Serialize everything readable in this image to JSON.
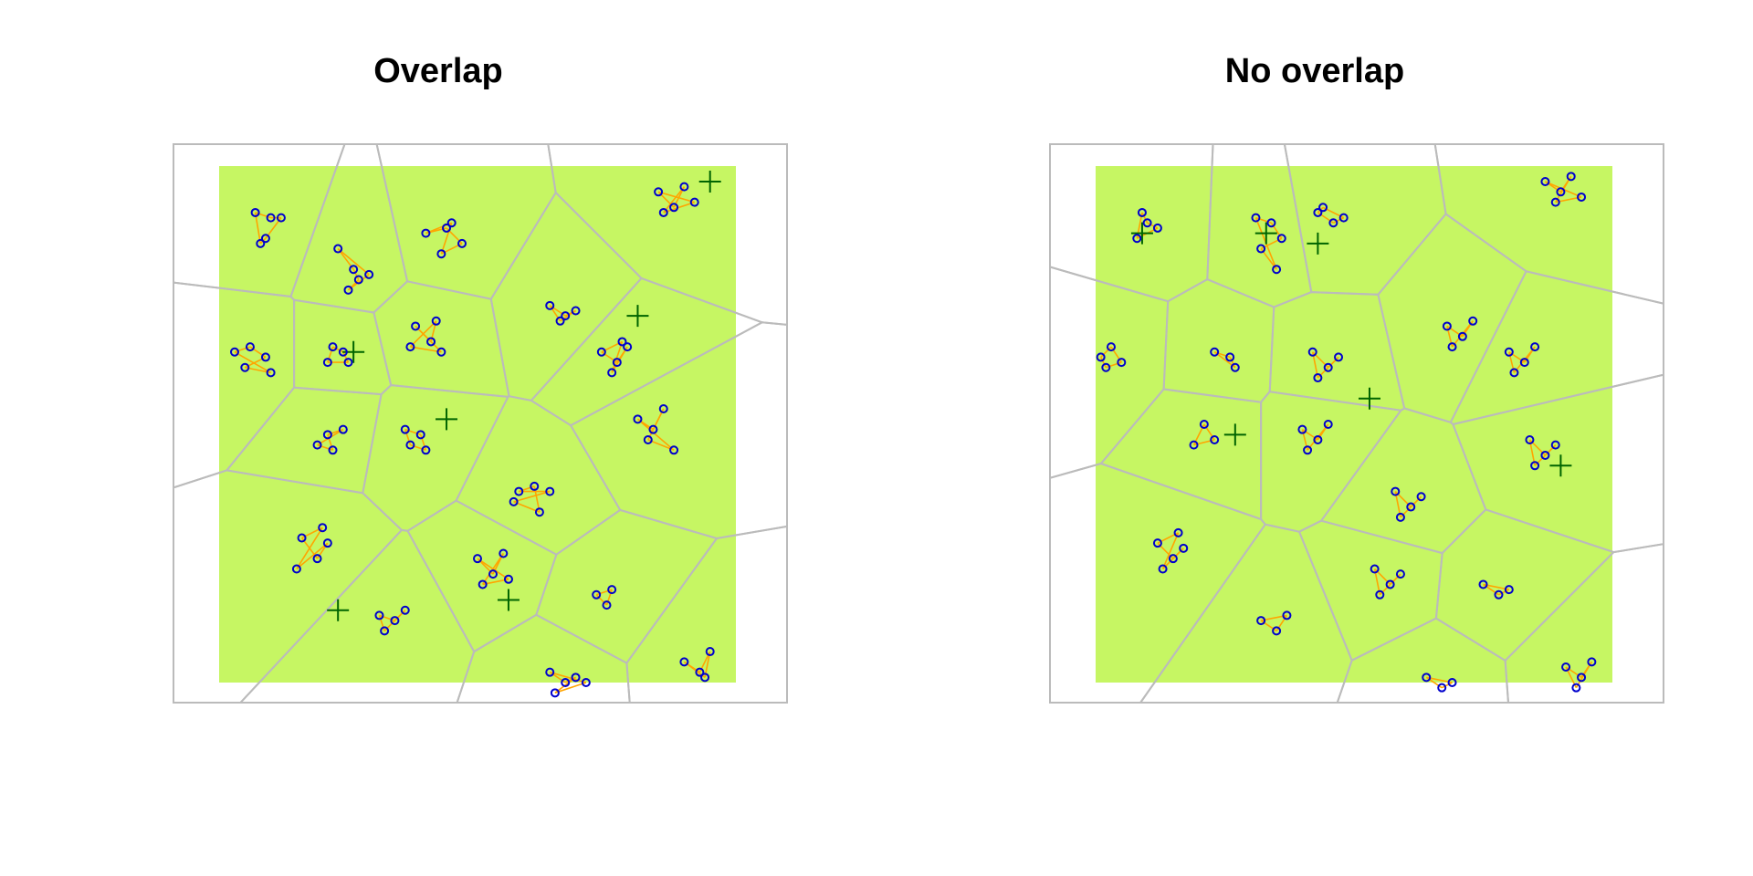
{
  "chart_data": [
    {
      "type": "scatter",
      "title": "Overlap",
      "window": "unit-square",
      "background_color": "#c6f663",
      "tessellation_color": "#bbbbbb",
      "point_color": "#0000cc",
      "line_color": "#ffa500",
      "center_color": "#006400",
      "axes": "none",
      "grid": false,
      "legend": "none",
      "centers": [
        [
          0.26,
          0.64
        ],
        [
          0.44,
          0.51
        ],
        [
          0.56,
          0.16
        ],
        [
          0.81,
          0.71
        ],
        [
          0.23,
          0.14
        ],
        [
          0.95,
          0.97
        ]
      ],
      "clusters": [
        {
          "c": [
            0.09,
            0.88
          ],
          "pts": [
            [
              0.07,
              0.91
            ],
            [
              0.1,
              0.9
            ],
            [
              0.12,
              0.9
            ],
            [
              0.09,
              0.86
            ],
            [
              0.08,
              0.85
            ]
          ]
        },
        {
          "c": [
            0.26,
            0.82
          ],
          "pts": [
            [
              0.23,
              0.84
            ],
            [
              0.26,
              0.8
            ],
            [
              0.27,
              0.78
            ],
            [
              0.25,
              0.76
            ],
            [
              0.29,
              0.79
            ]
          ]
        },
        {
          "c": [
            0.44,
            0.86
          ],
          "pts": [
            [
              0.4,
              0.87
            ],
            [
              0.44,
              0.88
            ],
            [
              0.47,
              0.85
            ],
            [
              0.43,
              0.83
            ],
            [
              0.45,
              0.89
            ]
          ]
        },
        {
          "c": [
            0.88,
            0.93
          ],
          "pts": [
            [
              0.85,
              0.95
            ],
            [
              0.88,
              0.92
            ],
            [
              0.9,
              0.96
            ],
            [
              0.86,
              0.91
            ],
            [
              0.92,
              0.93
            ]
          ]
        },
        {
          "c": [
            0.06,
            0.63
          ],
          "pts": [
            [
              0.03,
              0.64
            ],
            [
              0.06,
              0.65
            ],
            [
              0.09,
              0.63
            ],
            [
              0.05,
              0.61
            ],
            [
              0.1,
              0.6
            ]
          ]
        },
        {
          "c": [
            0.23,
            0.63
          ],
          "pts": [
            [
              0.22,
              0.65
            ],
            [
              0.24,
              0.64
            ],
            [
              0.25,
              0.62
            ],
            [
              0.21,
              0.62
            ]
          ]
        },
        {
          "c": [
            0.4,
            0.67
          ],
          "pts": [
            [
              0.38,
              0.69
            ],
            [
              0.41,
              0.66
            ],
            [
              0.42,
              0.7
            ],
            [
              0.37,
              0.65
            ],
            [
              0.43,
              0.64
            ]
          ]
        },
        {
          "c": [
            0.67,
            0.72
          ],
          "pts": [
            [
              0.64,
              0.73
            ],
            [
              0.67,
              0.71
            ],
            [
              0.69,
              0.72
            ],
            [
              0.66,
              0.7
            ]
          ]
        },
        {
          "c": [
            0.77,
            0.63
          ],
          "pts": [
            [
              0.74,
              0.64
            ],
            [
              0.77,
              0.62
            ],
            [
              0.79,
              0.65
            ],
            [
              0.76,
              0.6
            ],
            [
              0.78,
              0.66
            ]
          ]
        },
        {
          "c": [
            0.22,
            0.5
          ],
          "pts": [
            [
              0.21,
              0.48
            ],
            [
              0.24,
              0.49
            ],
            [
              0.19,
              0.46
            ],
            [
              0.22,
              0.45
            ]
          ]
        },
        {
          "c": [
            0.38,
            0.47
          ],
          "pts": [
            [
              0.36,
              0.49
            ],
            [
              0.39,
              0.48
            ],
            [
              0.4,
              0.45
            ],
            [
              0.37,
              0.46
            ]
          ]
        },
        {
          "c": [
            0.6,
            0.36
          ],
          "pts": [
            [
              0.58,
              0.37
            ],
            [
              0.61,
              0.38
            ],
            [
              0.62,
              0.33
            ],
            [
              0.57,
              0.35
            ],
            [
              0.64,
              0.37
            ]
          ]
        },
        {
          "c": [
            0.84,
            0.5
          ],
          "pts": [
            [
              0.81,
              0.51
            ],
            [
              0.84,
              0.49
            ],
            [
              0.86,
              0.53
            ],
            [
              0.83,
              0.47
            ],
            [
              0.88,
              0.45
            ]
          ]
        },
        {
          "c": [
            0.18,
            0.26
          ],
          "pts": [
            [
              0.16,
              0.28
            ],
            [
              0.19,
              0.24
            ],
            [
              0.21,
              0.27
            ],
            [
              0.15,
              0.22
            ],
            [
              0.2,
              0.3
            ]
          ]
        },
        {
          "c": [
            0.33,
            0.12
          ],
          "pts": [
            [
              0.31,
              0.13
            ],
            [
              0.34,
              0.12
            ],
            [
              0.36,
              0.14
            ],
            [
              0.32,
              0.1
            ]
          ]
        },
        {
          "c": [
            0.53,
            0.23
          ],
          "pts": [
            [
              0.5,
              0.24
            ],
            [
              0.53,
              0.21
            ],
            [
              0.55,
              0.25
            ],
            [
              0.51,
              0.19
            ],
            [
              0.56,
              0.2
            ]
          ]
        },
        {
          "c": [
            0.74,
            0.16
          ],
          "pts": [
            [
              0.73,
              0.17
            ],
            [
              0.75,
              0.15
            ],
            [
              0.76,
              0.18
            ]
          ]
        },
        {
          "c": [
            0.66,
            0.01
          ],
          "pts": [
            [
              0.64,
              0.02
            ],
            [
              0.67,
              0.0
            ],
            [
              0.69,
              0.01
            ],
            [
              0.65,
              -0.02
            ],
            [
              0.71,
              0.0
            ]
          ]
        },
        {
          "c": [
            0.92,
            0.03
          ],
          "pts": [
            [
              0.9,
              0.04
            ],
            [
              0.93,
              0.02
            ],
            [
              0.95,
              0.06
            ],
            [
              0.94,
              0.01
            ]
          ]
        }
      ]
    },
    {
      "type": "scatter",
      "title": "No overlap",
      "window": "unit-square",
      "background_color": "#c6f663",
      "tessellation_color": "#bbbbbb",
      "point_color": "#0000cc",
      "line_color": "#ffa500",
      "center_color": "#006400",
      "axes": "none",
      "grid": false,
      "legend": "none",
      "centers": [
        [
          0.09,
          0.87
        ],
        [
          0.33,
          0.87
        ],
        [
          0.43,
          0.85
        ],
        [
          0.53,
          0.55
        ],
        [
          0.27,
          0.48
        ],
        [
          0.9,
          0.42
        ]
      ],
      "clusters": [
        {
          "c": [
            0.1,
            0.88
          ],
          "pts": [
            [
              0.09,
              0.91
            ],
            [
              0.1,
              0.89
            ],
            [
              0.12,
              0.88
            ],
            [
              0.08,
              0.86
            ]
          ]
        },
        {
          "c": [
            0.34,
            0.87
          ],
          "pts": [
            [
              0.31,
              0.9
            ],
            [
              0.34,
              0.89
            ],
            [
              0.36,
              0.86
            ],
            [
              0.32,
              0.84
            ],
            [
              0.35,
              0.8
            ]
          ]
        },
        {
          "c": [
            0.45,
            0.89
          ],
          "pts": [
            [
              0.43,
              0.91
            ],
            [
              0.46,
              0.89
            ],
            [
              0.48,
              0.9
            ],
            [
              0.44,
              0.92
            ]
          ]
        },
        {
          "c": [
            0.9,
            0.96
          ],
          "pts": [
            [
              0.87,
              0.97
            ],
            [
              0.9,
              0.95
            ],
            [
              0.92,
              0.98
            ],
            [
              0.89,
              0.93
            ],
            [
              0.94,
              0.94
            ]
          ]
        },
        {
          "c": [
            0.03,
            0.64
          ],
          "pts": [
            [
              0.01,
              0.63
            ],
            [
              0.03,
              0.65
            ],
            [
              0.05,
              0.62
            ],
            [
              0.02,
              0.61
            ]
          ]
        },
        {
          "c": [
            0.24,
            0.63
          ],
          "pts": [
            [
              0.23,
              0.64
            ],
            [
              0.26,
              0.63
            ],
            [
              0.27,
              0.61
            ]
          ]
        },
        {
          "c": [
            0.44,
            0.62
          ],
          "pts": [
            [
              0.42,
              0.64
            ],
            [
              0.45,
              0.61
            ],
            [
              0.47,
              0.63
            ],
            [
              0.43,
              0.59
            ]
          ]
        },
        {
          "c": [
            0.7,
            0.68
          ],
          "pts": [
            [
              0.68,
              0.69
            ],
            [
              0.71,
              0.67
            ],
            [
              0.73,
              0.7
            ],
            [
              0.69,
              0.65
            ]
          ]
        },
        {
          "c": [
            0.82,
            0.62
          ],
          "pts": [
            [
              0.8,
              0.64
            ],
            [
              0.83,
              0.62
            ],
            [
              0.85,
              0.65
            ],
            [
              0.81,
              0.6
            ]
          ]
        },
        {
          "c": [
            0.22,
            0.48
          ],
          "pts": [
            [
              0.21,
              0.5
            ],
            [
              0.23,
              0.47
            ],
            [
              0.19,
              0.46
            ]
          ]
        },
        {
          "c": [
            0.42,
            0.48
          ],
          "pts": [
            [
              0.4,
              0.49
            ],
            [
              0.43,
              0.47
            ],
            [
              0.45,
              0.5
            ],
            [
              0.41,
              0.45
            ]
          ]
        },
        {
          "c": [
            0.6,
            0.35
          ],
          "pts": [
            [
              0.58,
              0.37
            ],
            [
              0.61,
              0.34
            ],
            [
              0.63,
              0.36
            ],
            [
              0.59,
              0.32
            ]
          ]
        },
        {
          "c": [
            0.86,
            0.45
          ],
          "pts": [
            [
              0.84,
              0.47
            ],
            [
              0.87,
              0.44
            ],
            [
              0.89,
              0.46
            ],
            [
              0.85,
              0.42
            ]
          ]
        },
        {
          "c": [
            0.14,
            0.25
          ],
          "pts": [
            [
              0.12,
              0.27
            ],
            [
              0.15,
              0.24
            ],
            [
              0.17,
              0.26
            ],
            [
              0.13,
              0.22
            ],
            [
              0.16,
              0.29
            ]
          ]
        },
        {
          "c": [
            0.34,
            0.11
          ],
          "pts": [
            [
              0.32,
              0.12
            ],
            [
              0.35,
              0.1
            ],
            [
              0.37,
              0.13
            ]
          ]
        },
        {
          "c": [
            0.56,
            0.2
          ],
          "pts": [
            [
              0.54,
              0.22
            ],
            [
              0.57,
              0.19
            ],
            [
              0.59,
              0.21
            ],
            [
              0.55,
              0.17
            ]
          ]
        },
        {
          "c": [
            0.77,
            0.18
          ],
          "pts": [
            [
              0.75,
              0.19
            ],
            [
              0.78,
              0.17
            ],
            [
              0.8,
              0.18
            ]
          ]
        },
        {
          "c": [
            0.66,
            0.0
          ],
          "pts": [
            [
              0.64,
              0.01
            ],
            [
              0.67,
              -0.01
            ],
            [
              0.69,
              0.0
            ]
          ]
        },
        {
          "c": [
            0.93,
            0.02
          ],
          "pts": [
            [
              0.91,
              0.03
            ],
            [
              0.94,
              0.01
            ],
            [
              0.96,
              0.04
            ],
            [
              0.93,
              -0.01
            ]
          ]
        }
      ]
    }
  ]
}
